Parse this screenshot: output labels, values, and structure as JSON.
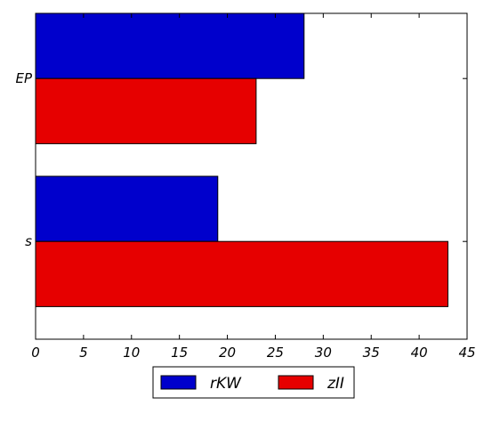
{
  "chart_data": {
    "type": "bar",
    "orientation": "horizontal",
    "categories": [
      "EP",
      "s"
    ],
    "series": [
      {
        "name": "rKW",
        "color": "#0000cc",
        "values": [
          28,
          19
        ]
      },
      {
        "name": "zII",
        "color": "#e60000",
        "values": [
          23,
          43
        ]
      }
    ],
    "title": "",
    "xlabel": "",
    "ylabel": "",
    "xlim": [
      0,
      45
    ],
    "xticks": [
      0,
      5,
      10,
      15,
      20,
      25,
      30,
      35,
      40,
      45
    ],
    "grid": false,
    "legend": {
      "placement": "bottom-center",
      "entries": [
        "rKW",
        "zII"
      ]
    }
  }
}
